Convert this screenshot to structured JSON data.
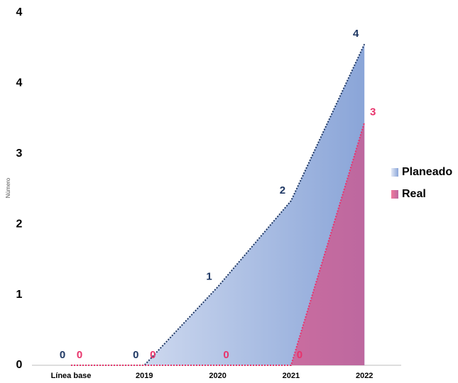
{
  "chart_data": {
    "type": "area",
    "y_label": "Número",
    "categories": [
      "Línea base",
      "2019",
      "2020",
      "2021",
      "2022"
    ],
    "series": [
      {
        "name": "Planeado",
        "color": "#8aa5d8",
        "values": [
          0,
          0,
          1.0,
          2.1,
          4.1
        ],
        "value_labels": [
          "0",
          "0",
          "1",
          "2",
          "4"
        ]
      },
      {
        "name": "Real",
        "color": "#e8336b",
        "values": [
          0,
          0,
          0,
          0,
          3.1
        ],
        "value_labels": [
          "0",
          "0",
          "0",
          "0",
          "3"
        ]
      }
    ],
    "ylim": [
      0,
      4.5
    ],
    "yticks": [
      0,
      {
        "value": 0.9,
        "label": "1"
      },
      {
        "value": 1.8,
        "label": "2"
      },
      {
        "value": 2.7,
        "label": "3"
      },
      {
        "value": 3.6,
        "label": "4"
      },
      {
        "value": 4.5,
        "label": "4"
      }
    ],
    "legend": "right"
  }
}
